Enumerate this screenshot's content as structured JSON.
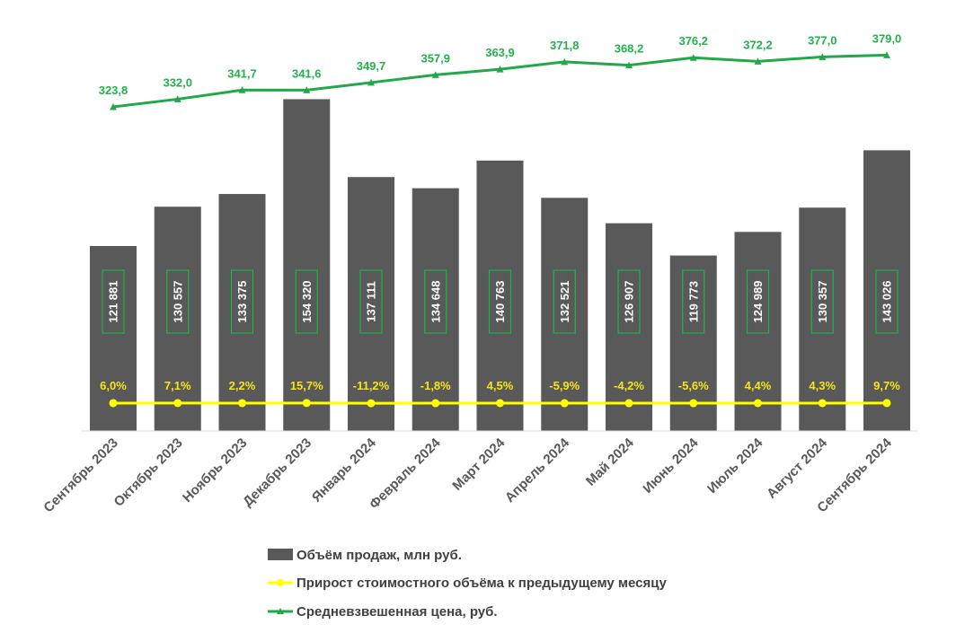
{
  "chart_data": {
    "type": "bar",
    "categories": [
      "Сентябрь 2023",
      "Октябрь 2023",
      "Ноябрь 2023",
      "Декабрь 2023",
      "Январь 2024",
      "Февраль 2024",
      "Март 2024",
      "Апрель 2024",
      "Май 2024",
      "Июнь 2024",
      "Июль 2024",
      "Август 2024",
      "Сентябрь 2024"
    ],
    "series": [
      {
        "name": "Объём продаж, млн руб.",
        "kind": "bar",
        "values": [
          121881,
          130557,
          133375,
          154320,
          137111,
          134648,
          140763,
          132521,
          126907,
          119773,
          124989,
          130357,
          143026
        ],
        "labels": [
          "121 881",
          "130 557",
          "133 375",
          "154 320",
          "137 111",
          "134 648",
          "140 763",
          "132 521",
          "126 907",
          "119 773",
          "124 989",
          "130 357",
          "143 026"
        ],
        "color": "#595959"
      },
      {
        "name": "Прирост стоимостного объёма к предыдущему месяцу",
        "kind": "line",
        "values": [
          6.0,
          7.1,
          2.2,
          15.7,
          -11.2,
          -1.8,
          4.5,
          -5.9,
          -4.2,
          -5.6,
          4.4,
          4.3,
          9.7
        ],
        "labels": [
          "6,0%",
          "7,1%",
          "2,2%",
          "15,7%",
          "-11,2%",
          "-1,8%",
          "4,5%",
          "-5,9%",
          "-4,2%",
          "-5,6%",
          "4,4%",
          "4,3%",
          "9,7%"
        ],
        "color": "#ffff00"
      },
      {
        "name": "Средневзвешенная цена, руб.",
        "kind": "line",
        "values": [
          323.8,
          332.0,
          341.7,
          341.6,
          349.7,
          357.9,
          363.9,
          371.8,
          368.2,
          376.2,
          372.2,
          377.0,
          379.0
        ],
        "labels": [
          "323,8",
          "332,0",
          "341,7",
          "341,6",
          "349,7",
          "357,9",
          "363,9",
          "371,8",
          "368,2",
          "376,2",
          "372,2",
          "377,0",
          "379,0"
        ],
        "color": "#22a84b"
      }
    ],
    "title": "",
    "xlabel": "",
    "ylabel": "",
    "legend_position": "bottom",
    "grid": false
  }
}
